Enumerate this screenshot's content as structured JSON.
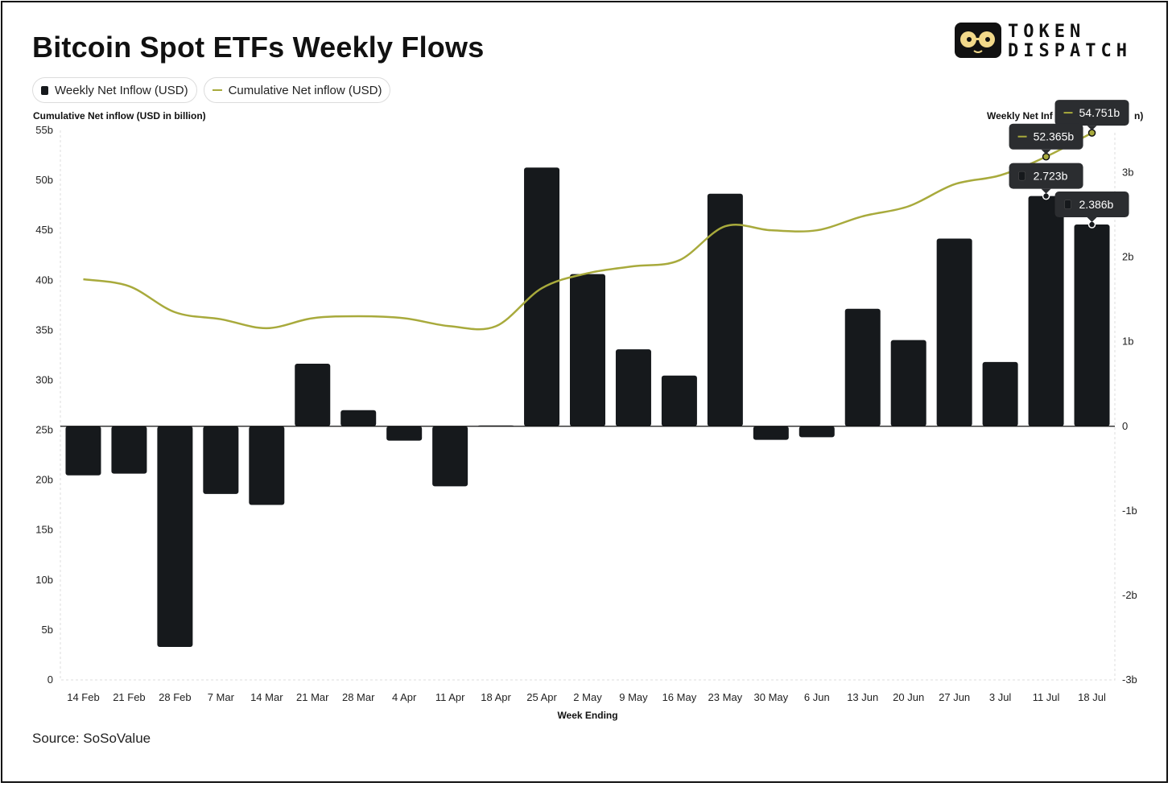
{
  "title": "Bitcoin Spot ETFs Weekly Flows",
  "legend": {
    "bar_label": "Weekly Net Inflow (USD)",
    "line_label": "Cumulative Net inflow (USD)"
  },
  "source": "Source: SoSoValue",
  "logo": {
    "line1": "TOKEN",
    "line2": "DISPATCH"
  },
  "colors": {
    "bar": "#16191c",
    "line": "#a8aa3c",
    "tooltip": "#2b2d30"
  },
  "chart_data": {
    "type": "bar+line",
    "title": "Bitcoin Spot ETFs Weekly Flows",
    "xlabel": "Week Ending",
    "ylabel_left": "Cumulative Net inflow (USD in billion)",
    "ylabel_right": "Weekly Net Inflow (USD in billion)",
    "ylabel_right_shown": "Weekly Net Inf",
    "ylabel_right_tail": "n)",
    "left_axis": {
      "min": 0,
      "max": 55,
      "ticks": [
        "0",
        "5b",
        "10b",
        "15b",
        "20b",
        "25b",
        "30b",
        "35b",
        "40b",
        "45b",
        "50b",
        "55b"
      ]
    },
    "right_axis": {
      "min": -3,
      "max": 3.5,
      "ticks": [
        "-3b",
        "-2b",
        "-1b",
        "0",
        "1b",
        "2b",
        "3b"
      ],
      "tick_values": [
        -3,
        -2,
        -1,
        0,
        1,
        2,
        3
      ]
    },
    "categories": [
      "14 Feb",
      "21 Feb",
      "28 Feb",
      "7 Mar",
      "14 Mar",
      "21 Mar",
      "28 Mar",
      "4 Apr",
      "11 Apr",
      "18 Apr",
      "25 Apr",
      "2 May",
      "9 May",
      "16 May",
      "23 May",
      "30 May",
      "6 Jun",
      "13 Jun",
      "20 Jun",
      "27 Jun",
      "3 Jul",
      "11 Jul",
      "18 Jul"
    ],
    "series": [
      {
        "name": "Weekly Net Inflow (USD)",
        "type": "bar",
        "axis": "right",
        "values": [
          -0.58,
          -0.56,
          -2.61,
          -0.8,
          -0.93,
          0.74,
          0.19,
          -0.17,
          -0.71,
          0.01,
          3.06,
          1.8,
          0.91,
          0.6,
          2.75,
          -0.16,
          -0.13,
          1.39,
          1.02,
          2.22,
          0.76,
          2.723,
          2.386
        ]
      },
      {
        "name": "Cumulative Net inflow (USD)",
        "type": "line",
        "axis": "left",
        "values": [
          40.1,
          39.4,
          36.8,
          36.1,
          35.2,
          36.2,
          36.4,
          36.2,
          35.4,
          35.4,
          39.2,
          40.7,
          41.4,
          42.0,
          45.4,
          45.0,
          45.0,
          46.4,
          47.4,
          49.6,
          50.5,
          52.365,
          54.751
        ]
      }
    ],
    "tooltips": [
      {
        "label": "54.751b",
        "kind": "line",
        "index": 22
      },
      {
        "label": "52.365b",
        "kind": "line",
        "index": 21
      },
      {
        "label": "2.723b",
        "kind": "bar",
        "index": 21
      },
      {
        "label": "2.386b",
        "kind": "bar",
        "index": 22
      }
    ]
  }
}
